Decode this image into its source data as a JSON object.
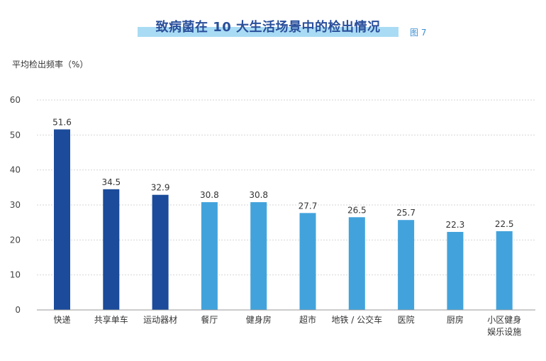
{
  "figure_label": "图 7",
  "chart_data": {
    "type": "bar",
    "title": "致病菌在 10 大生活场景中的检出情况",
    "ylabel": "平均检出频率（%）",
    "xlabel": "",
    "ylim": [
      0,
      60
    ],
    "yticks": [
      0,
      10,
      20,
      30,
      40,
      50,
      60
    ],
    "grid": true,
    "categories": [
      [
        "快递"
      ],
      [
        "共享单车"
      ],
      [
        "运动器材"
      ],
      [
        "餐厅"
      ],
      [
        "健身房"
      ],
      [
        "超市"
      ],
      [
        "地铁 / 公交车"
      ],
      [
        "医院"
      ],
      [
        "厨房"
      ],
      [
        "小区健身",
        "娱乐设施"
      ]
    ],
    "values": [
      51.6,
      34.5,
      32.9,
      30.8,
      30.8,
      27.7,
      26.5,
      25.7,
      22.3,
      22.5
    ],
    "value_labels": [
      "51.6",
      "34.5",
      "32.9",
      "30.8",
      "30.8",
      "27.7",
      "26.5",
      "25.7",
      "22.3",
      "22.5"
    ],
    "colors": {
      "highlight": "#1b4b9a",
      "normal": "#42a3dc",
      "grid": "#d6d6d6",
      "axis": "#999999"
    },
    "highlight_count": 3
  }
}
